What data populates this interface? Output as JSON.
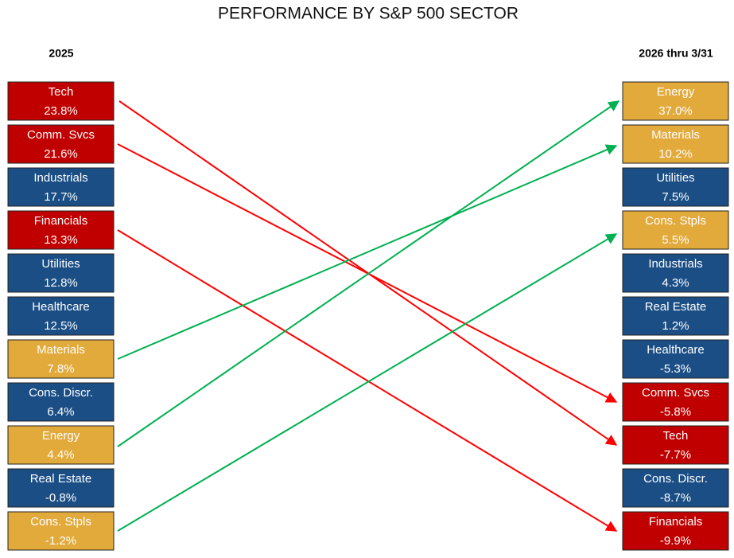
{
  "title": "PERFORMANCE BY S&P 500 SECTOR",
  "left": {
    "header": "2025",
    "items": [
      {
        "name": "Tech",
        "value": "23.8%",
        "color": "#c00000"
      },
      {
        "name": "Comm. Svcs",
        "value": "21.6%",
        "color": "#c00000"
      },
      {
        "name": "Industrials",
        "value": "17.7%",
        "color": "#1a4e85"
      },
      {
        "name": "Financials",
        "value": "13.3%",
        "color": "#c00000"
      },
      {
        "name": "Utilities",
        "value": "12.8%",
        "color": "#1a4e85"
      },
      {
        "name": "Healthcare",
        "value": "12.5%",
        "color": "#1a4e85"
      },
      {
        "name": "Materials",
        "value": "7.8%",
        "color": "#e2a93b"
      },
      {
        "name": "Cons. Discr.",
        "value": "6.4%",
        "color": "#1a4e85"
      },
      {
        "name": "Energy",
        "value": "4.4%",
        "color": "#e2a93b"
      },
      {
        "name": "Real Estate",
        "value": "-0.8%",
        "color": "#1a4e85"
      },
      {
        "name": "Cons. Stpls",
        "value": "-1.2%",
        "color": "#e2a93b"
      }
    ]
  },
  "right": {
    "header": "2026 thru 3/31",
    "items": [
      {
        "name": "Energy",
        "value": "37.0%",
        "color": "#e2a93b"
      },
      {
        "name": "Materials",
        "value": "10.2%",
        "color": "#e2a93b"
      },
      {
        "name": "Utilities",
        "value": "7.5%",
        "color": "#1a4e85"
      },
      {
        "name": "Cons. Stpls",
        "value": "5.5%",
        "color": "#e2a93b"
      },
      {
        "name": "Industrials",
        "value": "4.3%",
        "color": "#1a4e85"
      },
      {
        "name": "Real Estate",
        "value": "1.2%",
        "color": "#1a4e85"
      },
      {
        "name": "Healthcare",
        "value": "-5.3%",
        "color": "#1a4e85"
      },
      {
        "name": "Comm. Svcs",
        "value": "-5.8%",
        "color": "#c00000"
      },
      {
        "name": "Tech",
        "value": "-7.7%",
        "color": "#c00000"
      },
      {
        "name": "Cons. Discr.",
        "value": "-8.7%",
        "color": "#1a4e85"
      },
      {
        "name": "Financials",
        "value": "-9.9%",
        "color": "#c00000"
      }
    ]
  }
}
